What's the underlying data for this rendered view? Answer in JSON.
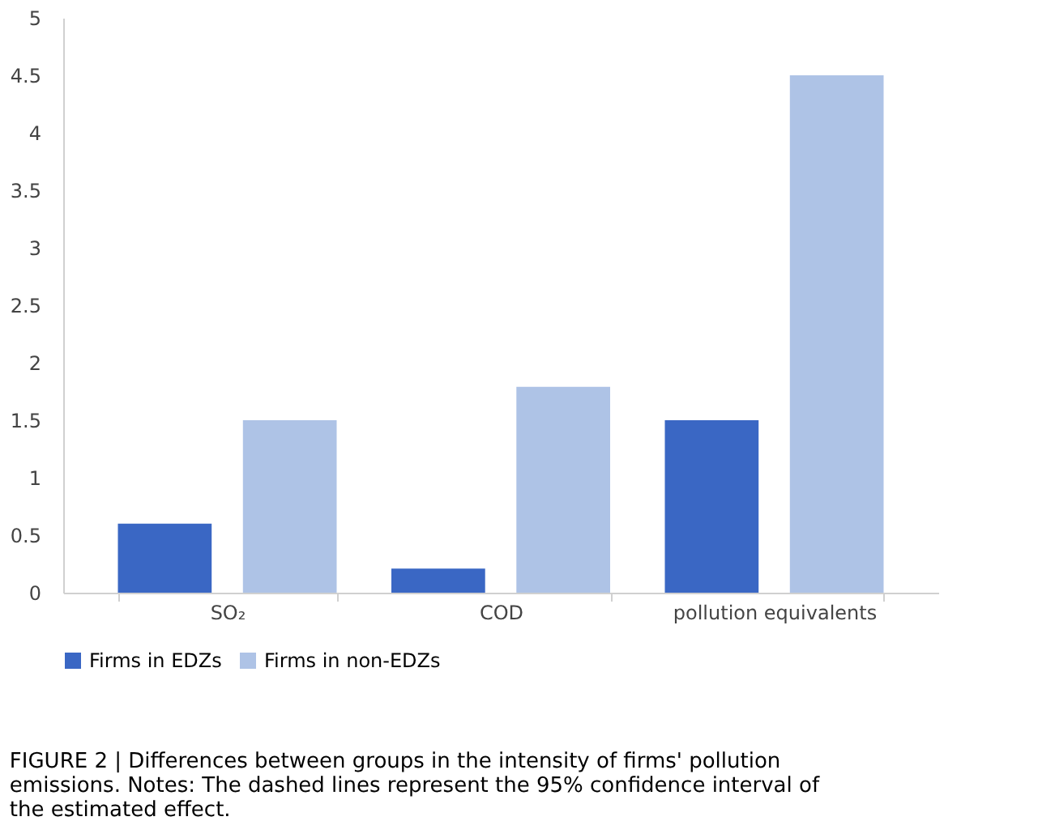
{
  "chart_data": {
    "type": "bar",
    "categories": [
      "SO₂",
      "COD",
      "pollution equivalents"
    ],
    "series": [
      {
        "name": "Firms in EDZs",
        "color": "#3a67c4",
        "values": [
          0.6,
          0.21,
          1.5
        ]
      },
      {
        "name": "Firms in non-EDZs",
        "color": "#aec3e6",
        "values": [
          1.5,
          1.79,
          4.5
        ]
      }
    ],
    "ylim": [
      0,
      5
    ],
    "yticks": [
      0,
      0.5,
      1,
      1.5,
      2,
      2.5,
      3,
      3.5,
      4,
      4.5,
      5
    ],
    "grid": false,
    "legend": "bottom",
    "annotations": [
      "FIGURE 2 | Differences between groups in the intensity of firms' pollution emissions. Notes: The dashed lines represent the 95% confidence interval of the estimated effect."
    ]
  }
}
